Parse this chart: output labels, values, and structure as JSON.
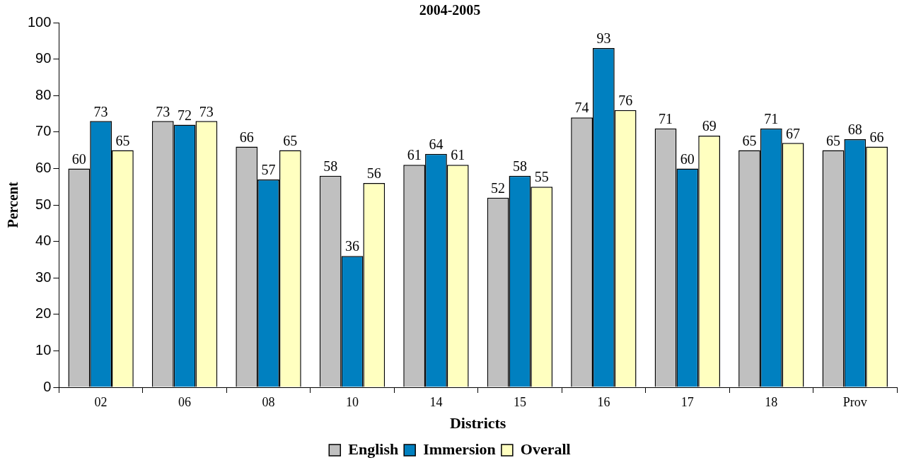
{
  "chart_data": {
    "type": "bar",
    "title": "2004-2005",
    "xlabel": "Districts",
    "ylabel": "Percent",
    "categories": [
      "02",
      "06",
      "08",
      "10",
      "14",
      "15",
      "16",
      "17",
      "18",
      "Prov"
    ],
    "series": [
      {
        "name": "English",
        "color": "#c0c0c0",
        "values": [
          60,
          73,
          66,
          58,
          61,
          52,
          74,
          71,
          65,
          65
        ]
      },
      {
        "name": "Immersion",
        "color": "#0080c0",
        "values": [
          73,
          72,
          57,
          36,
          64,
          58,
          93,
          60,
          71,
          68
        ]
      },
      {
        "name": "Overall",
        "color": "#ffffc0",
        "values": [
          65,
          73,
          65,
          56,
          61,
          55,
          76,
          69,
          67,
          66
        ]
      }
    ],
    "ylim": [
      0,
      100
    ],
    "yticks": [
      0,
      10,
      20,
      30,
      40,
      50,
      60,
      70,
      80,
      90,
      100
    ],
    "grid": false,
    "legend": "bottom",
    "data_labels": true
  }
}
